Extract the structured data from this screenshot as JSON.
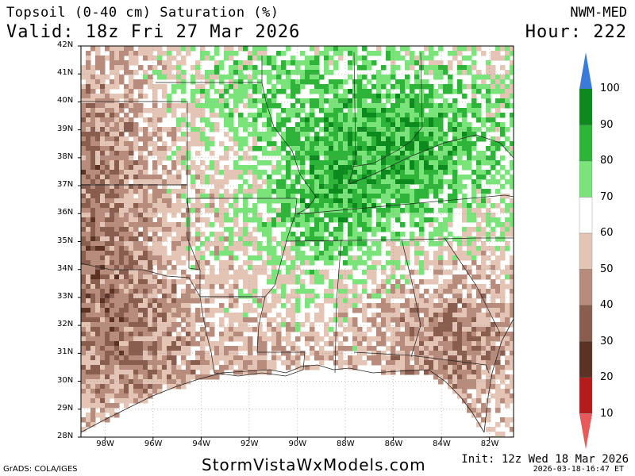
{
  "header": {
    "title": "Topsoil (0-40 cm) Saturation (%)",
    "valid": "Valid: 18z Fri 27 Mar 2026",
    "model": "NWM-MED",
    "hour": "Hour: 222"
  },
  "footer": {
    "site": "StormVistaWxModels.com",
    "init": "Init: 12z Wed 18 Mar 2026",
    "stamp": "2026-03-18-16:47 ET",
    "credit": "GrADS: COLA/IGES"
  },
  "map": {
    "lat_labels": [
      "42N",
      "41N",
      "40N",
      "39N",
      "38N",
      "37N",
      "36N",
      "35N",
      "34N",
      "33N",
      "32N",
      "31N",
      "30N",
      "29N",
      "28N"
    ],
    "lon_labels": [
      "98W",
      "96W",
      "94W",
      "92W",
      "90W",
      "88W",
      "86W",
      "84W",
      "82W"
    ],
    "lat_range": [
      28,
      42
    ],
    "lon_range": [
      -99,
      -81
    ],
    "land_color": "#ffffff",
    "water_color": "#ffffff"
  },
  "legend": {
    "labels": [
      "100",
      "90",
      "80",
      "70",
      "60",
      "50",
      "40",
      "30",
      "20",
      "10"
    ],
    "colors": {
      "over": "#3a7ad8",
      "90-100": "#0c8a1e",
      "80-90": "#2fb43a",
      "70-80": "#7ae47a",
      "60-70": "#ffffff",
      "50-60": "#e4c4b4",
      "40-50": "#b88c7c",
      "30-40": "#8a5e4e",
      "20-30": "#5a3324",
      "10-20": "#b41c1c",
      "under": "#e85a5a"
    }
  }
}
